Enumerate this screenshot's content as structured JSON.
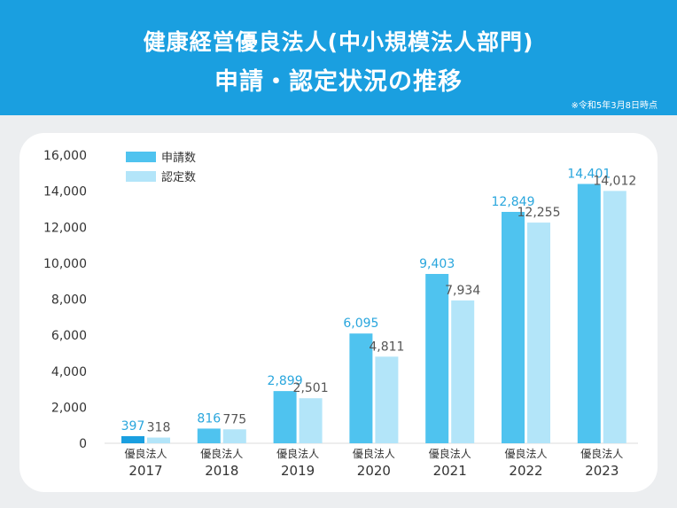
{
  "header": {
    "title_line1": "健康経営優良法人(中小規模法人部門)",
    "title_line2": "申請・認定状況の推移",
    "note": "※令和5年3月8日時点"
  },
  "colors": {
    "header_bg": "#1a9fe0",
    "series_applications": "#4fc3ef",
    "series_applications_highlight": "#1a9fe0",
    "series_certifications": "#b3e5f9",
    "label_applications": "#29a6dd",
    "label_certifications": "#555555"
  },
  "chart_data": {
    "type": "bar",
    "categories": [
      "2017",
      "2018",
      "2019",
      "2020",
      "2021",
      "2022",
      "2023"
    ],
    "category_prefix": "優良法人",
    "series": [
      {
        "name": "申請数",
        "values": [
          397,
          816,
          2899,
          6095,
          9403,
          12849,
          14401
        ],
        "labels": [
          "397",
          "816",
          "2,899",
          "6,095",
          "9,403",
          "12,849",
          "14,401"
        ]
      },
      {
        "name": "認定数",
        "values": [
          318,
          775,
          2501,
          4811,
          7934,
          12255,
          14012
        ],
        "labels": [
          "318",
          "775",
          "2,501",
          "4,811",
          "7,934",
          "12,255",
          "14,012"
        ]
      }
    ],
    "ylim": [
      0,
      16000
    ],
    "yticks": [
      0,
      2000,
      4000,
      6000,
      8000,
      10000,
      12000,
      14000,
      16000
    ],
    "ytick_labels": [
      "0",
      "2,000",
      "4,000",
      "6,000",
      "8,000",
      "10,000",
      "12,000",
      "14,000",
      "16,000"
    ],
    "legend_position": "top-left",
    "grid": false
  }
}
